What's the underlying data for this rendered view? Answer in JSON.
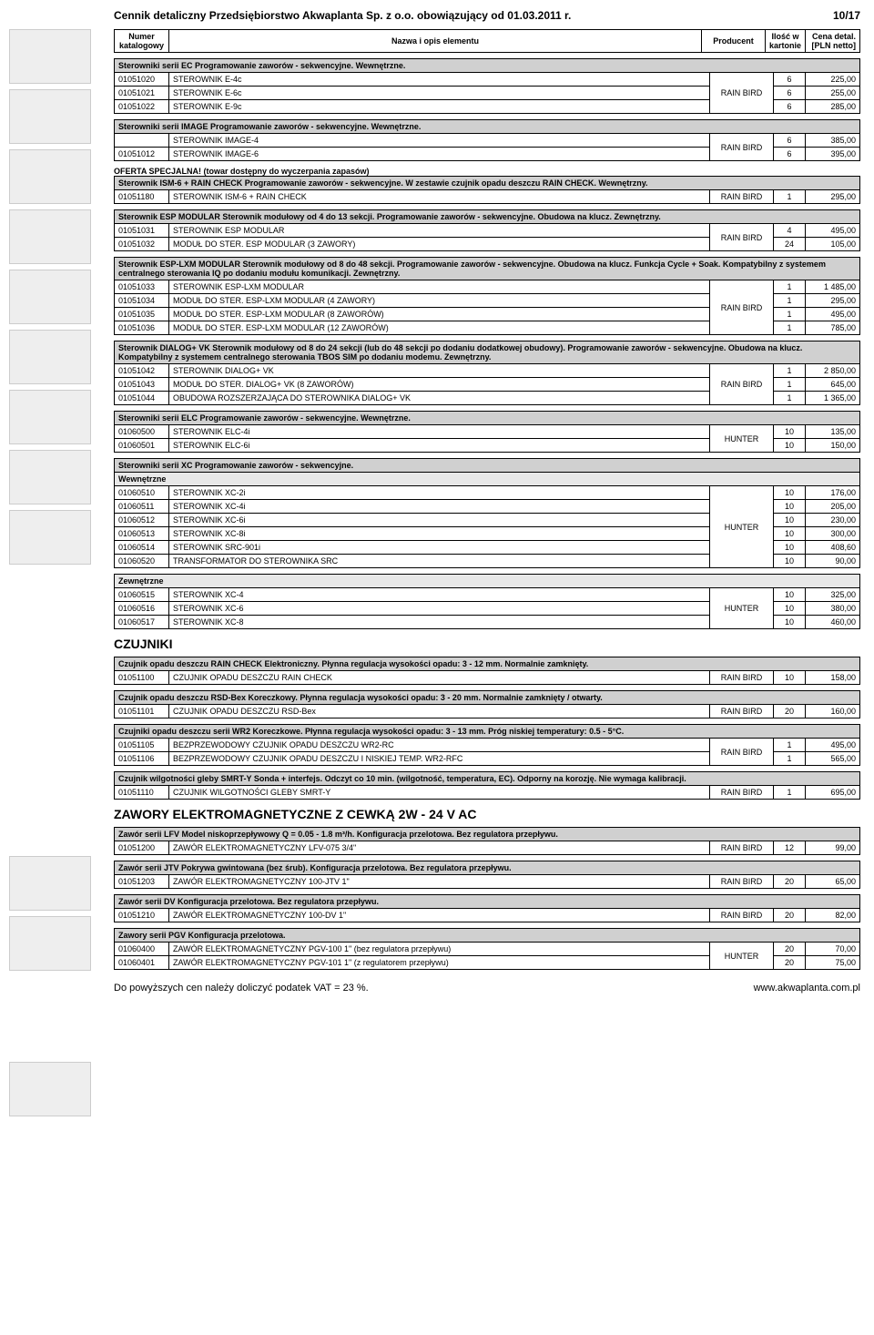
{
  "header": {
    "title": "Cennik detaliczny Przedsiębiorstwo Akwaplanta Sp. z o.o. obowiązujący od 01.03.2011 r.",
    "page": "10/17"
  },
  "columns": {
    "num": "Numer katalogowy",
    "name": "Nazwa i opis elementu",
    "prod": "Producent",
    "qty": "Ilość w kartonie",
    "price": "Cena detal. [PLN netto]"
  },
  "producers": {
    "rb": "RAIN BIRD",
    "hu": "HUNTER"
  },
  "sections": [
    {
      "hdr": "Sterowniki serii EC  Programowanie zaworów - sekwencyjne. Wewnętrzne.",
      "prod": "RAIN BIRD",
      "rows": [
        {
          "n": "01051020",
          "d": "STEROWNIK E-4c",
          "q": "6",
          "p": "225,00"
        },
        {
          "n": "01051021",
          "d": "STEROWNIK E-6c",
          "q": "6",
          "p": "255,00"
        },
        {
          "n": "01051022",
          "d": "STEROWNIK E-9c",
          "q": "6",
          "p": "285,00"
        }
      ]
    },
    {
      "hdr": "Sterowniki serii IMAGE  Programowanie zaworów - sekwencyjne. Wewnętrzne.",
      "prod": "RAIN BIRD",
      "rows": [
        {
          "n": "",
          "d": "STEROWNIK IMAGE-4",
          "q": "6",
          "p": "385,00"
        },
        {
          "n": "01051012",
          "d": "STEROWNIK IMAGE-6",
          "q": "6",
          "p": "395,00"
        }
      ]
    },
    {
      "pre": "OFERTA SPECJALNA! (towar dostępny do wyczerpania zapasów)",
      "hdr": "Sterownik ISM-6 + RAIN CHECK  Programowanie zaworów - sekwencyjne. W zestawie czujnik opadu deszczu RAIN CHECK. Wewnętrzny.",
      "prod": "RAIN BIRD",
      "rows": [
        {
          "n": "01051180",
          "d": "STEROWNIK ISM-6 + RAIN CHECK",
          "q": "1",
          "p": "295,00"
        }
      ]
    },
    {
      "hdr": "Sterownik ESP MODULAR  Sterownik modułowy od 4 do 13 sekcji. Programowanie zaworów - sekwencyjne. Obudowa na klucz. Zewnętrzny.",
      "prod": "RAIN BIRD",
      "rows": [
        {
          "n": "01051031",
          "d": "STEROWNIK ESP MODULAR",
          "q": "4",
          "p": "495,00"
        },
        {
          "n": "01051032",
          "d": "MODUŁ DO STER. ESP MODULAR  (3 ZAWORY)",
          "q": "24",
          "p": "105,00"
        }
      ]
    },
    {
      "hdr": "Sterownik ESP-LXM MODULAR  Sterownik modułowy od 8 do 48 sekcji. Programowanie zaworów - sekwencyjne. Obudowa na klucz. Funkcja Cycle + Soak. Kompatybilny z systemem centralnego sterowania IQ po dodaniu modułu komunikacji. Zewnętrzny.",
      "prod": "RAIN BIRD",
      "rows": [
        {
          "n": "01051033",
          "d": "STEROWNIK ESP-LXM MODULAR",
          "q": "1",
          "p": "1 485,00"
        },
        {
          "n": "01051034",
          "d": "MODUŁ DO STER. ESP-LXM MODULAR (4 ZAWORY)",
          "q": "1",
          "p": "295,00"
        },
        {
          "n": "01051035",
          "d": "MODUŁ DO STER. ESP-LXM MODULAR (8 ZAWORÓW)",
          "q": "1",
          "p": "495,00"
        },
        {
          "n": "01051036",
          "d": "MODUŁ DO STER. ESP-LXM MODULAR (12 ZAWORÓW)",
          "q": "1",
          "p": "785,00"
        }
      ]
    },
    {
      "hdr": "Sterownik DIALOG+ VK  Sterownik modułowy od 8 do 24 sekcji (lub do 48 sekcji po dodaniu dodatkowej obudowy). Programowanie zaworów - sekwencyjne. Obudowa na klucz. Kompatybilny z systemem centralnego sterowania TBOS SIM po dodaniu modemu. Zewnętrzny.",
      "prod": "RAIN BIRD",
      "rows": [
        {
          "n": "01051042",
          "d": "STEROWNIK DIALOG+ VK",
          "q": "1",
          "p": "2 850,00"
        },
        {
          "n": "01051043",
          "d": "MODUŁ DO STER. DIALOG+ VK (8 ZAWORÓW)",
          "q": "1",
          "p": "645,00"
        },
        {
          "n": "01051044",
          "d": "OBUDOWA ROZSZERZAJĄCA DO STEROWNIKA DIALOG+ VK",
          "q": "1",
          "p": "1 365,00"
        }
      ]
    },
    {
      "hdr": "Sterowniki serii ELC  Programowanie zaworów - sekwencyjne. Wewnętrzne.",
      "prod": "HUNTER",
      "rows": [
        {
          "n": "01060500",
          "d": "STEROWNIK ELC-4i",
          "q": "10",
          "p": "135,00"
        },
        {
          "n": "01060501",
          "d": "STEROWNIK ELC-6i",
          "q": "10",
          "p": "150,00"
        }
      ]
    },
    {
      "hdr": "Sterowniki serii XC  Programowanie zaworów - sekwencyjne.",
      "sub": "Wewnętrzne",
      "prod": "HUNTER",
      "rows": [
        {
          "n": "01060510",
          "d": "STEROWNIK XC-2i",
          "q": "10",
          "p": "176,00"
        },
        {
          "n": "01060511",
          "d": "STEROWNIK XC-4i",
          "q": "10",
          "p": "205,00"
        },
        {
          "n": "01060512",
          "d": "STEROWNIK XC-6i",
          "q": "10",
          "p": "230,00"
        },
        {
          "n": "01060513",
          "d": "STEROWNIK XC-8i",
          "q": "10",
          "p": "300,00"
        },
        {
          "n": "01060514",
          "d": "STEROWNIK SRC-901i",
          "q": "10",
          "p": "408,60"
        },
        {
          "n": "01060520",
          "d": "TRANSFORMATOR DO STEROWNIKA SRC",
          "q": "10",
          "p": "90,00"
        }
      ]
    },
    {
      "sub": "Zewnętrzne",
      "prod": "HUNTER",
      "rows": [
        {
          "n": "01060515",
          "d": "STEROWNIK XC-4",
          "q": "10",
          "p": "325,00"
        },
        {
          "n": "01060516",
          "d": "STEROWNIK XC-6",
          "q": "10",
          "p": "380,00"
        },
        {
          "n": "01060517",
          "d": "STEROWNIK XC-8",
          "q": "10",
          "p": "460,00"
        }
      ]
    }
  ],
  "h2a": "CZUJNIKI",
  "sensors": [
    {
      "hdr": "Czujnik opadu deszczu RAIN CHECK  Elektroniczny. Płynna regulacja wysokości opadu: 3 - 12 mm. Normalnie zamknięty.",
      "prod": "RAIN BIRD",
      "rows": [
        {
          "n": "01051100",
          "d": "CZUJNIK OPADU DESZCZU  RAIN CHECK",
          "q": "10",
          "p": "158,00"
        }
      ]
    },
    {
      "hdr": "Czujnik opadu deszczu RSD-Bex  Koreczkowy. Płynna regulacja wysokości opadu: 3 - 20 mm. Normalnie zamknięty / otwarty.",
      "prod": "RAIN BIRD",
      "rows": [
        {
          "n": "01051101",
          "d": "CZUJNIK OPADU DESZCZU  RSD-Bex",
          "q": "20",
          "p": "160,00"
        }
      ]
    },
    {
      "hdr": "Czujniki opadu deszczu serii WR2  Koreczkowe. Płynna regulacja wysokości opadu: 3 - 13 mm. Próg niskiej temperatury: 0.5 - 5°C.",
      "prod": "RAIN BIRD",
      "rows": [
        {
          "n": "01051105",
          "d": "BEZPRZEWODOWY CZUJNIK OPADU DESZCZU  WR2-RC",
          "q": "1",
          "p": "495,00"
        },
        {
          "n": "01051106",
          "d": "BEZPRZEWODOWY CZUJNIK OPADU DESZCZU I NISKIEJ TEMP.  WR2-RFC",
          "q": "1",
          "p": "565,00"
        }
      ]
    },
    {
      "hdr": "Czujnik wilgotności gleby SMRT-Y  Sonda + interfejs. Odczyt co 10 min. (wilgotność, temperatura, EC). Odporny na korozję. Nie wymaga kalibracji.",
      "prod": "RAIN BIRD",
      "rows": [
        {
          "n": "01051110",
          "d": "CZUJNIK WILGOTNOŚCI GLEBY SMRT-Y",
          "q": "1",
          "p": "695,00"
        }
      ]
    }
  ],
  "h2b": "ZAWORY ELEKTROMAGNETYCZNE Z CEWKĄ 2W - 24 V AC",
  "valves": [
    {
      "hdr": "Zawór serii LFV  Model niskoprzepływowy Q = 0.05 - 1.8 m³/h. Konfiguracja przelotowa. Bez regulatora przepływu.",
      "prod": "RAIN BIRD",
      "rows": [
        {
          "n": "01051200",
          "d": "ZAWÓR ELEKTROMAGNETYCZNY LFV-075 3/4\"",
          "q": "12",
          "p": "99,00"
        }
      ]
    },
    {
      "hdr": "Zawór serii JTV  Pokrywa gwintowana (bez śrub). Konfiguracja przelotowa. Bez regulatora przepływu.",
      "prod": "RAIN BIRD",
      "rows": [
        {
          "n": "01051203",
          "d": "ZAWÓR ELEKTROMAGNETYCZNY 100-JTV 1\"",
          "q": "20",
          "p": "65,00"
        }
      ]
    },
    {
      "hdr": "Zawór serii DV  Konfiguracja przelotowa. Bez regulatora przepływu.",
      "prod": "RAIN BIRD",
      "rows": [
        {
          "n": "01051210",
          "d": "ZAWÓR ELEKTROMAGNETYCZNY 100-DV 1\"",
          "q": "20",
          "p": "82,00"
        }
      ]
    },
    {
      "hdr": "Zawory serii PGV  Konfiguracja przelotowa.",
      "prod": "HUNTER",
      "rows": [
        {
          "n": "01060400",
          "d": "ZAWÓR ELEKTROMAGNETYCZNY PGV-100 1\" (bez regulatora przepływu)",
          "q": "20",
          "p": "70,00"
        },
        {
          "n": "01060401",
          "d": "ZAWÓR ELEKTROMAGNETYCZNY PGV-101 1\" (z regulatorem przepływu)",
          "q": "20",
          "p": "75,00"
        }
      ]
    }
  ],
  "footer": {
    "left": "Do powyższych cen należy doliczyć podatek VAT = 23 %.",
    "right": "www.akwaplanta.com.pl"
  }
}
